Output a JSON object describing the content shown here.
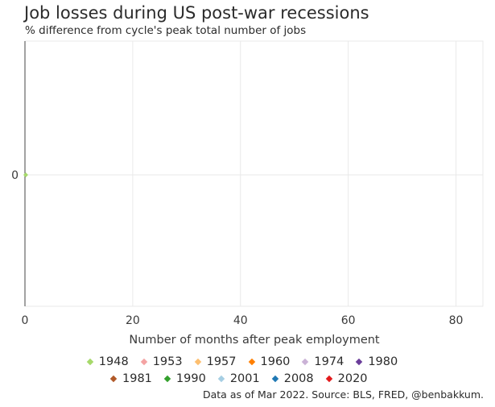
{
  "chart_data": {
    "type": "line",
    "title": "Job losses during US post-war recessions",
    "subtitle": "% difference from cycle's peak total number of jobs",
    "xlabel": "Number of months after peak employment",
    "ylabel": "",
    "xlim": [
      0,
      85
    ],
    "xticks": [
      0,
      20,
      40,
      60,
      80
    ],
    "yticks": [
      0
    ],
    "grid": true,
    "legend_position": "bottom",
    "series": [
      {
        "name": "1948",
        "color": "#a6d96a",
        "x": [
          0
        ],
        "y": [
          0
        ]
      },
      {
        "name": "1953",
        "color": "#f4a3a3",
        "x": [],
        "y": []
      },
      {
        "name": "1957",
        "color": "#fdbf6f",
        "x": [],
        "y": []
      },
      {
        "name": "1960",
        "color": "#ff7f00",
        "x": [],
        "y": []
      },
      {
        "name": "1974",
        "color": "#cab2d6",
        "x": [],
        "y": []
      },
      {
        "name": "1980",
        "color": "#6a3d9a",
        "x": [],
        "y": []
      },
      {
        "name": "1981",
        "color": "#b15928",
        "x": [],
        "y": []
      },
      {
        "name": "1990",
        "color": "#33a02c",
        "x": [],
        "y": []
      },
      {
        "name": "2001",
        "color": "#a6cee3",
        "x": [],
        "y": []
      },
      {
        "name": "2008",
        "color": "#1f78b4",
        "x": [],
        "y": []
      },
      {
        "name": "2020",
        "color": "#e31a1c",
        "x": [],
        "y": []
      }
    ],
    "source": "Data as of Mar 2022. Source: BLS, FRED, @benbakkum."
  }
}
